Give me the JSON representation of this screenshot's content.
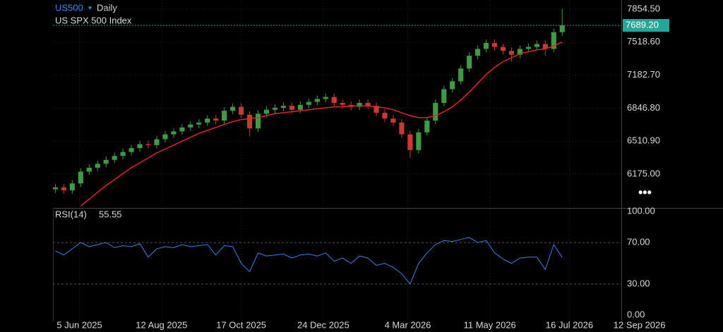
{
  "chart_data": {
    "type": "candlestick",
    "symbol": "US500",
    "interval": "Daily",
    "title": "US SPX 500 Index",
    "up_color": "#3f9a45",
    "down_color": "#c83a32",
    "x": [
      "2025-05-16",
      "2025-05-23",
      "2025-05-30",
      "2025-06-06",
      "2025-06-13",
      "2025-06-20",
      "2025-06-27",
      "2025-07-04",
      "2025-07-11",
      "2025-07-18",
      "2025-07-25",
      "2025-08-01",
      "2025-08-08",
      "2025-08-15",
      "2025-08-22",
      "2025-08-29",
      "2025-09-05",
      "2025-09-12",
      "2025-09-19",
      "2025-09-26",
      "2025-10-03",
      "2025-10-10",
      "2025-10-17",
      "2025-10-24",
      "2025-10-31",
      "2025-11-07",
      "2025-11-14",
      "2025-11-21",
      "2025-11-28",
      "2025-12-05",
      "2025-12-12",
      "2025-12-19",
      "2025-12-26",
      "2026-01-02",
      "2026-01-09",
      "2026-01-16",
      "2026-01-23",
      "2026-01-30",
      "2026-02-06",
      "2026-02-13",
      "2026-02-20",
      "2026-02-27",
      "2026-03-06",
      "2026-03-13",
      "2026-03-20",
      "2026-03-27",
      "2026-04-03",
      "2026-04-10",
      "2026-04-17",
      "2026-04-24",
      "2026-05-01",
      "2026-05-08",
      "2026-05-15",
      "2026-05-22",
      "2026-05-29",
      "2026-06-05",
      "2026-06-12",
      "2026-06-19",
      "2026-06-26",
      "2026-07-03",
      "2026-07-10"
    ],
    "open": [
      6020,
      6040,
      6010,
      6080,
      6200,
      6240,
      6280,
      6320,
      6360,
      6400,
      6440,
      6480,
      6470,
      6530,
      6580,
      6610,
      6650,
      6680,
      6700,
      6740,
      6720,
      6820,
      6860,
      6780,
      6640,
      6790,
      6830,
      6850,
      6870,
      6830,
      6880,
      6910,
      6940,
      6960,
      6900,
      6880,
      6860,
      6900,
      6870,
      6800,
      6740,
      6700,
      6580,
      6420,
      6600,
      6720,
      6900,
      7040,
      7120,
      7250,
      7380,
      7450,
      7510,
      7470,
      7430,
      7390,
      7450,
      7470,
      7500,
      7450,
      7620
    ],
    "high": [
      6075,
      6075,
      6115,
      6235,
      6275,
      6315,
      6355,
      6395,
      6435,
      6475,
      6515,
      6515,
      6565,
      6615,
      6645,
      6685,
      6715,
      6735,
      6775,
      6775,
      6855,
      6895,
      6895,
      6815,
      6825,
      6865,
      6885,
      6905,
      6905,
      6915,
      6945,
      6975,
      6995,
      6995,
      6935,
      6915,
      6935,
      6935,
      6905,
      6835,
      6775,
      6735,
      6615,
      6635,
      6755,
      6935,
      7075,
      7155,
      7285,
      7415,
      7485,
      7545,
      7545,
      7505,
      7465,
      7485,
      7505,
      7535,
      7535,
      7655,
      7860
    ],
    "low": [
      5985,
      5975,
      5975,
      6045,
      6165,
      6205,
      6245,
      6285,
      6325,
      6365,
      6405,
      6435,
      6435,
      6495,
      6545,
      6575,
      6615,
      6645,
      6665,
      6685,
      6685,
      6785,
      6745,
      6560,
      6605,
      6755,
      6795,
      6815,
      6795,
      6795,
      6845,
      6875,
      6905,
      6865,
      6845,
      6825,
      6825,
      6835,
      6765,
      6705,
      6665,
      6545,
      6340,
      6385,
      6565,
      6685,
      6865,
      7005,
      7085,
      7215,
      7345,
      7415,
      7435,
      7395,
      7320,
      7355,
      7415,
      7435,
      7380,
      7415,
      7585
    ],
    "close": [
      6040,
      6010,
      6080,
      6200,
      6240,
      6280,
      6320,
      6360,
      6400,
      6440,
      6480,
      6470,
      6530,
      6580,
      6610,
      6650,
      6680,
      6700,
      6740,
      6720,
      6820,
      6860,
      6780,
      6640,
      6790,
      6830,
      6850,
      6870,
      6830,
      6880,
      6910,
      6940,
      6960,
      6900,
      6880,
      6860,
      6900,
      6870,
      6800,
      6740,
      6700,
      6580,
      6420,
      6600,
      6720,
      6900,
      7040,
      7120,
      7250,
      7380,
      7450,
      7510,
      7470,
      7430,
      7390,
      7450,
      7470,
      7500,
      7450,
      7620,
      7689.2
    ],
    "ma": {
      "color": "#e0262a",
      "values": [
        null,
        null,
        null,
        5850,
        5920,
        5990,
        6060,
        6120,
        6180,
        6240,
        6290,
        6340,
        6390,
        6430,
        6470,
        6510,
        6550,
        6590,
        6620,
        6650,
        6680,
        6710,
        6730,
        6740,
        6750,
        6770,
        6790,
        6800,
        6810,
        6820,
        6830,
        6840,
        6850,
        6860,
        6860,
        6870,
        6870,
        6870,
        6860,
        6850,
        6830,
        6800,
        6770,
        6750,
        6750,
        6770,
        6810,
        6860,
        6930,
        7010,
        7100,
        7190,
        7260,
        7320,
        7360,
        7400,
        7420,
        7440,
        7450,
        7480,
        7520
      ]
    },
    "last_price": {
      "value": 7689.2,
      "label": "7689.20"
    },
    "last_price_color": "#26a69a",
    "ylim": [
      5830.5,
      7947.8
    ],
    "yticks": [
      {
        "value": 6175,
        "label": "6175.00"
      },
      {
        "value": 6510.9,
        "label": "6510.90"
      },
      {
        "value": 6846.8,
        "label": "6846.80"
      },
      {
        "value": 7182.7,
        "label": "7182.70"
      },
      {
        "value": 7518.6,
        "label": "7518.60"
      },
      {
        "value": 7854.5,
        "label": "7854.50"
      }
    ],
    "xlim": [
      "2025-05-14",
      "2026-08-28"
    ],
    "xticks": [
      {
        "value": "2025-06-05",
        "label": "5 Jun 2025"
      },
      {
        "value": "2025-08-12",
        "label": "12 Aug 2025"
      },
      {
        "value": "2025-10-17",
        "label": "17 Oct 2025"
      },
      {
        "value": "2025-12-24",
        "label": "24 Dec 2025"
      },
      {
        "value": "2026-03-04",
        "label": "4 Mar 2026"
      },
      {
        "value": "2026-05-11",
        "label": "11 May 2026"
      },
      {
        "value": "2026-07-16",
        "label": "16 Jul 2026"
      },
      {
        "value": "2026-09-12",
        "label": "12 Sep 2026"
      }
    ],
    "grid": true,
    "rsi": {
      "label": "RSI(14)",
      "color": "#3d7fe6",
      "values": [
        62,
        58,
        64,
        70,
        66,
        68,
        70,
        65,
        67,
        66,
        69,
        56,
        64,
        66,
        65,
        68,
        66,
        67,
        68,
        58,
        67,
        66,
        50,
        42,
        60,
        57,
        58,
        59,
        55,
        58,
        59,
        57,
        60,
        52,
        55,
        50,
        57,
        55,
        48,
        50,
        46,
        40,
        30,
        50,
        60,
        68,
        72,
        71,
        73,
        75,
        70,
        72,
        60,
        54,
        50,
        55,
        56,
        56,
        44,
        68,
        55.55
      ],
      "ylim": [
        0,
        100
      ],
      "yticks": [
        {
          "value": 0,
          "label": "0.00"
        },
        {
          "value": 30,
          "label": "30.00"
        },
        {
          "value": 70,
          "label": "70.00"
        },
        {
          "value": 100,
          "label": "100.00"
        }
      ],
      "levels": [
        30,
        70
      ]
    }
  }
}
